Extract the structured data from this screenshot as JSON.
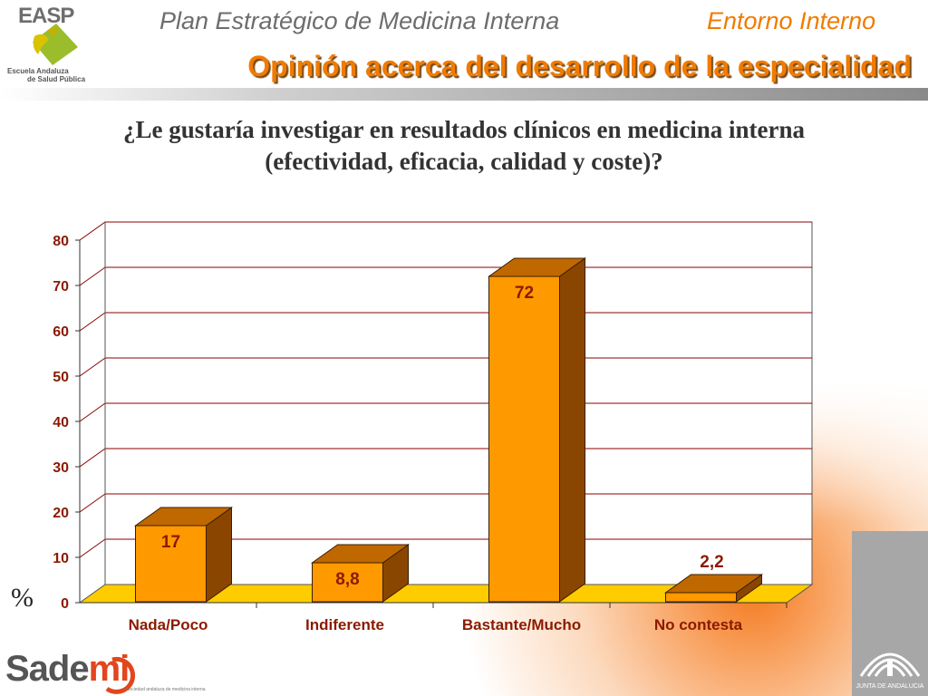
{
  "header": {
    "plan_title": "Plan Estratégico de Medicina Interna",
    "section_title": "Entorno Interno",
    "subtitle": "Opinión acerca del desarrollo de la especialidad"
  },
  "logos": {
    "easp": {
      "abbr": "EASP",
      "line1": "Escuela Andaluza",
      "line2": "de Salud Pública"
    },
    "sademi": {
      "name_prefix": "Sade",
      "name_suffix": "mi",
      "tagline": "Sociedad andaluza de medicina interna"
    },
    "junta": {
      "name": "JUNTA DE ANDALUCIA"
    }
  },
  "question": {
    "line1": "¿Le gustaría investigar en resultados clínicos en medicina interna",
    "line2": "(efectividad, eficacia, calidad y coste)?"
  },
  "unit_symbol": "%",
  "colors": {
    "bar_front": "#ff9900",
    "bar_side": "#8a4600",
    "bar_top": "#c06800",
    "floor": "#ffcc00",
    "gridline": "#8b0000",
    "label_text": "#8b1a00",
    "plot_bg": "#ffffff"
  },
  "chart_data": {
    "type": "bar",
    "categories": [
      "Nada/Poco",
      "Indiferente",
      "Bastante/Mucho",
      "No contesta"
    ],
    "values": [
      17,
      8.8,
      72,
      2.2
    ],
    "value_labels": [
      "17",
      "8,8",
      "72",
      "2,2"
    ],
    "ylim": [
      0,
      80
    ],
    "yticks": [
      0,
      10,
      20,
      30,
      40,
      50,
      60,
      70,
      80
    ],
    "grid": true,
    "style": "3d-column",
    "legend": "none"
  }
}
